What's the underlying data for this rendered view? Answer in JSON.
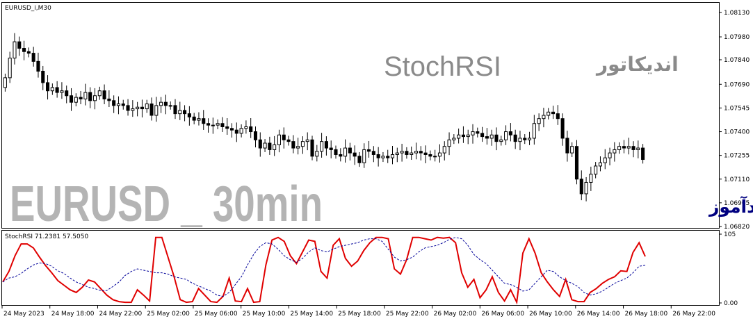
{
  "window": {
    "symbol_label": "EURUSD_i,M30",
    "indicator_label": "StochRSI 71.2381 57.5050"
  },
  "overlay": {
    "title_latin": "StochRSI",
    "title_persian": "اندیکاتور",
    "watermark": "EURUSD _ 30min",
    "publish_note": "انتشار در سایت سودآموز"
  },
  "colors": {
    "background": "#ffffff",
    "candle": "#000000",
    "stoch_main": "#e00000",
    "stoch_signal": "#000099",
    "watermark": "#b4b4b4",
    "title_latin": "#8a8a8a",
    "publish_note": "#000080"
  },
  "chart_data": [
    {
      "type": "candlestick",
      "y_ticks": [
        "1.08130",
        "1.07980",
        "1.07840",
        "1.07690",
        "1.07545",
        "1.07400",
        "1.07255",
        "1.07110",
        "1.06965",
        "1.06820"
      ],
      "ylim": [
        1.0682,
        1.0818
      ],
      "x_ticks": [
        "24 May 2023",
        "24 May 18:00",
        "24 May 22:00",
        "25 May 02:00",
        "25 May 06:00",
        "25 May 10:00",
        "25 May 14:00",
        "25 May 18:00",
        "25 May 22:00",
        "26 May 02:00",
        "26 May 06:00",
        "26 May 10:00",
        "26 May 14:00",
        "26 May 18:00",
        "26 May 22:00"
      ],
      "close": [
        1.0773,
        1.0785,
        1.0795,
        1.0791,
        1.0789,
        1.0788,
        1.0783,
        1.0777,
        1.077,
        1.0765,
        1.0767,
        1.0764,
        1.0765,
        1.0762,
        1.0758,
        1.0761,
        1.076,
        1.0764,
        1.0759,
        1.0762,
        1.0765,
        1.076,
        1.0759,
        1.0756,
        1.0757,
        1.0756,
        1.0753,
        1.0754,
        1.0755,
        1.0754,
        1.0757,
        1.075,
        1.0756,
        1.0758,
        1.0756,
        1.0756,
        1.0751,
        1.0753,
        1.0751,
        1.0749,
        1.0747,
        1.0748,
        1.0745,
        1.0744,
        1.0744,
        1.0745,
        1.0743,
        1.0742,
        1.0741,
        1.0739,
        1.0742,
        1.0743,
        1.074,
        1.0735,
        1.073,
        1.0733,
        1.0729,
        1.0732,
        1.0738,
        1.0735,
        1.0734,
        1.073,
        1.0731,
        1.0734,
        1.0735,
        1.0725,
        1.0728,
        1.0734,
        1.073,
        1.0729,
        1.0726,
        1.0725,
        1.073,
        1.0727,
        1.0725,
        1.0721,
        1.0729,
        1.0728,
        1.0726,
        1.0724,
        1.0725,
        1.0724,
        1.0726,
        1.0727,
        1.0728,
        1.0726,
        1.0727,
        1.0728,
        1.0727,
        1.0726,
        1.0725,
        1.0725,
        1.0727,
        1.0731,
        1.0735,
        1.0736,
        1.0738,
        1.0737,
        1.0738,
        1.074,
        1.0739,
        1.0737,
        1.0736,
        1.0738,
        1.0734,
        1.0735,
        1.074,
        1.0738,
        1.0734,
        1.0736,
        1.0735,
        1.0736,
        1.0745,
        1.0748,
        1.075,
        1.0752,
        1.0751,
        1.0748,
        1.0736,
        1.0727,
        1.0731,
        1.0711,
        1.0702,
        1.0709,
        1.0714,
        1.0719,
        1.0721,
        1.0724,
        1.0727,
        1.0729,
        1.0731,
        1.073,
        1.0731,
        1.0729,
        1.073,
        1.0723
      ]
    },
    {
      "type": "line",
      "title": "StochRSI",
      "y_ticks": [
        "105",
        "0.00"
      ],
      "ylim": [
        0,
        105
      ],
      "series": [
        {
          "name": "",
          "values": [
            32,
            48,
            72,
            90,
            90,
            84,
            70,
            57,
            46,
            34,
            27,
            20,
            16,
            24,
            35,
            32,
            22,
            12,
            5,
            2,
            1,
            1,
            20,
            12,
            3,
            100,
            100,
            70,
            40,
            5,
            1,
            2,
            22,
            12,
            2,
            1,
            10,
            38,
            3,
            2,
            22,
            1,
            2,
            58,
            96,
            100,
            94,
            72,
            60,
            78,
            96,
            94,
            48,
            38,
            88,
            98,
            68,
            56,
            64,
            80,
            92,
            100,
            100,
            98,
            52,
            44,
            66,
            100,
            100,
            98,
            96,
            100,
            99,
            100,
            92,
            46,
            24,
            36,
            8,
            20,
            40,
            16,
            3,
            20,
            1,
            76,
            98,
            76,
            46,
            32,
            20,
            10,
            36,
            5,
            2,
            2,
            16,
            22,
            30,
            36,
            40,
            49,
            48,
            77,
            92,
            71
          ]
        },
        {
          "name": "",
          "values": [
            32,
            38,
            40,
            45,
            52,
            58,
            61,
            60,
            56,
            49,
            45,
            38,
            32,
            28,
            24,
            22,
            19,
            19,
            25,
            32,
            42,
            48,
            52,
            50,
            48,
            46,
            46,
            44,
            40,
            38,
            36,
            30,
            26,
            22,
            18,
            12,
            10,
            16,
            28,
            40,
            58,
            74,
            86,
            92,
            90,
            82,
            72,
            66,
            62,
            68,
            78,
            84,
            80,
            78,
            82,
            86,
            88,
            90,
            92,
            96,
            98,
            98,
            94,
            82,
            70,
            64,
            66,
            70,
            78,
            84,
            86,
            88,
            92,
            97,
            100,
            98,
            88,
            74,
            66,
            60,
            50,
            40,
            30,
            28,
            24,
            18,
            20,
            30,
            40,
            50,
            48,
            40,
            34,
            30,
            25,
            16,
            12,
            14,
            18,
            24,
            30,
            34,
            38,
            46,
            56,
            57.5
          ]
        }
      ]
    }
  ]
}
